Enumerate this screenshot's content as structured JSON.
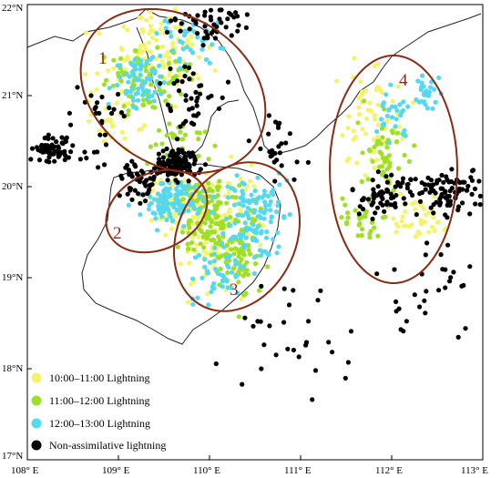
{
  "axes": {
    "lon_ticks": [
      "108° E",
      "109° E",
      "110° E",
      "111° E",
      "112° E",
      "113° E"
    ],
    "lat_ticks": [
      "22°N",
      "21°N",
      "20°N",
      "19°N",
      "18°N",
      "17°N"
    ]
  },
  "regions": [
    "1",
    "2",
    "3",
    "4"
  ],
  "legend": [
    {
      "label": "10:00–11:00 Lightning",
      "color": "#f4f46a"
    },
    {
      "label": "11:00–12:00 Lightning",
      "color": "#9ee028"
    },
    {
      "label": "12:00–13:00 Lightning",
      "color": "#55d8f0"
    },
    {
      "label": "Non-assimilative lightning",
      "color": "#000000"
    }
  ],
  "colors": {
    "ellipse": "#8b2a12",
    "coastline": "#222222"
  }
}
